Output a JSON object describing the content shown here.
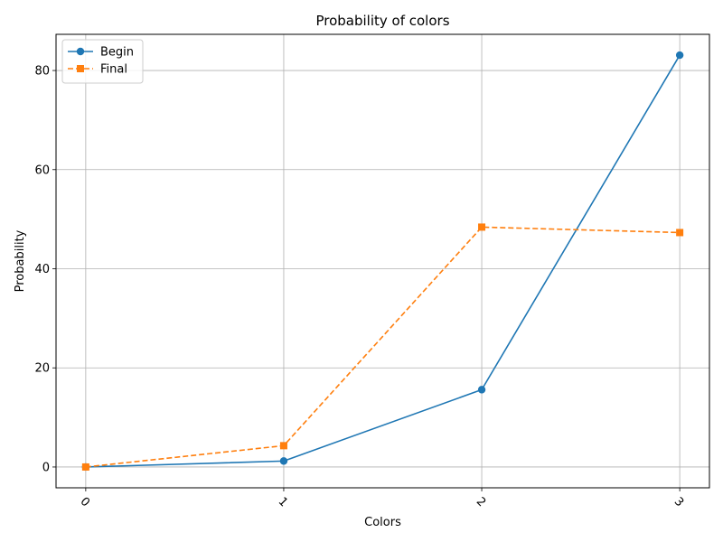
{
  "chart_data": {
    "type": "line",
    "title": "Probability of colors",
    "xlabel": "Colors",
    "ylabel": "Probability",
    "x": [
      "0",
      "1",
      "2",
      "3"
    ],
    "xlim": [
      -0.15,
      3.15
    ],
    "ylim": [
      -4.2,
      87.3
    ],
    "yticks": [
      0,
      20,
      40,
      60,
      80
    ],
    "grid": true,
    "legend_position": "top-left",
    "series": [
      {
        "name": "Begin",
        "values": [
          0.0,
          1.2,
          15.6,
          83.1
        ],
        "color": "#1f77b4",
        "marker": "circle",
        "line_style": "solid"
      },
      {
        "name": "Final",
        "values": [
          0.0,
          4.3,
          48.4,
          47.3
        ],
        "color": "#ff7f0e",
        "marker": "square",
        "line_style": "dashed"
      }
    ]
  }
}
